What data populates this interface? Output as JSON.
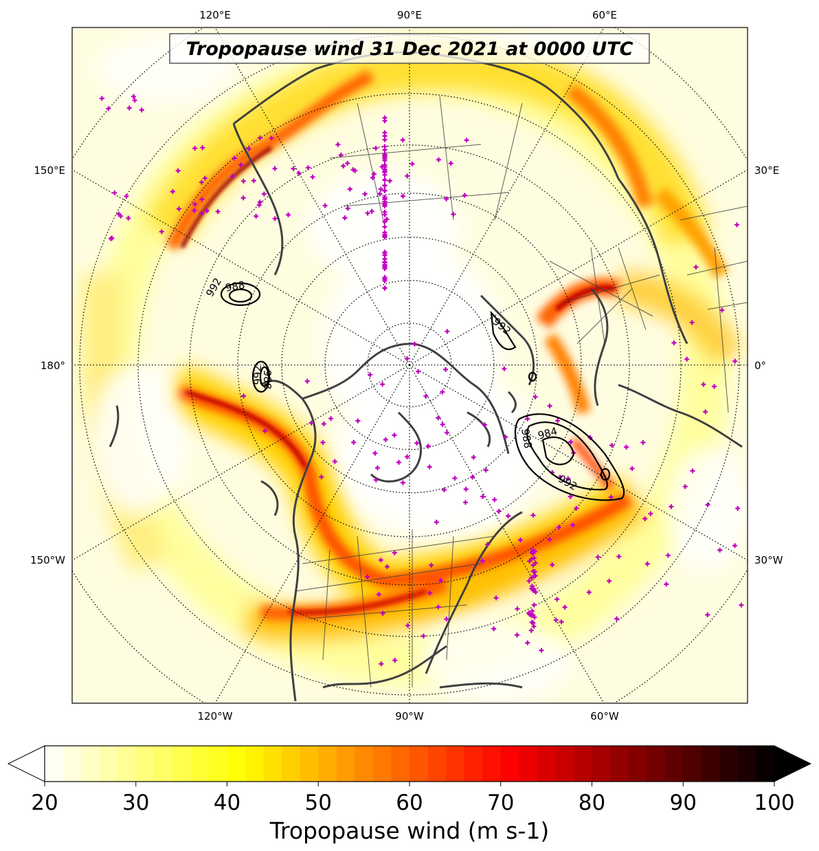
{
  "map": {
    "title": "Tropopause wind 31 Dec 2021 at 0000 UTC",
    "projection": "north-polar-stereographic",
    "top_longitude_labels": [
      "120°E",
      "90°E",
      "60°E"
    ],
    "bottom_longitude_labels": [
      "120°W",
      "90°W",
      "60°W"
    ],
    "left_labels": [
      "150°E",
      "180°",
      "150°W"
    ],
    "right_labels": [
      "30°E",
      "0°",
      "30°W"
    ],
    "marker_color": "#c000c0",
    "coastline_color": "#404040",
    "contour_labels": [
      "992",
      "988",
      "992",
      "988",
      "992",
      "988",
      "984",
      "992"
    ]
  },
  "colorbar": {
    "label": "Tropopause wind (m s-1)",
    "ticks": [
      20,
      30,
      40,
      50,
      60,
      70,
      80,
      90,
      100
    ],
    "min": 20,
    "max": 100,
    "extend": "both",
    "colormap": "hot_r"
  }
}
